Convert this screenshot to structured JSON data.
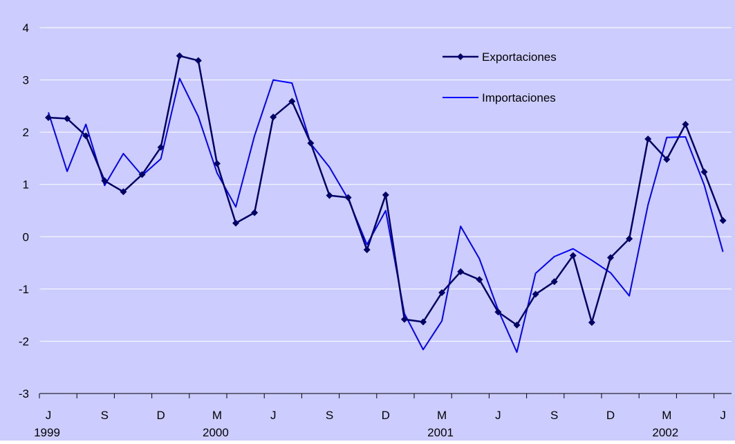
{
  "chart_data": {
    "type": "line",
    "title": "",
    "xlabel": "",
    "ylabel": "",
    "ylim": [
      -3,
      4
    ],
    "yticks": [
      -3,
      -2,
      -1,
      0,
      1,
      2,
      3,
      4
    ],
    "grid": true,
    "legend_position": "top-right",
    "x": [
      "1999-06",
      "1999-07",
      "1999-08",
      "1999-09",
      "1999-10",
      "1999-11",
      "1999-12",
      "2000-01",
      "2000-02",
      "2000-03",
      "2000-04",
      "2000-05",
      "2000-06",
      "2000-07",
      "2000-08",
      "2000-09",
      "2000-10",
      "2000-11",
      "2000-12",
      "2001-01",
      "2001-02",
      "2001-03",
      "2001-04",
      "2001-05",
      "2001-06",
      "2001-07",
      "2001-08",
      "2001-09",
      "2001-10",
      "2001-11",
      "2001-12",
      "2002-01",
      "2002-02",
      "2002-03",
      "2002-04",
      "2002-05",
      "2002-06"
    ],
    "month_tick_labels": [
      {
        "x": "1999-06",
        "label": "J"
      },
      {
        "x": "1999-09",
        "label": "S"
      },
      {
        "x": "1999-12",
        "label": "D"
      },
      {
        "x": "2000-03",
        "label": "M"
      },
      {
        "x": "2000-06",
        "label": "J"
      },
      {
        "x": "2000-09",
        "label": "S"
      },
      {
        "x": "2000-12",
        "label": "D"
      },
      {
        "x": "2001-03",
        "label": "M"
      },
      {
        "x": "2001-06",
        "label": "J"
      },
      {
        "x": "2001-09",
        "label": "S"
      },
      {
        "x": "2001-12",
        "label": "D"
      },
      {
        "x": "2002-03",
        "label": "M"
      },
      {
        "x": "2002-06",
        "label": "J"
      }
    ],
    "year_tick_labels": [
      {
        "x": "1999-06",
        "label": "1999"
      },
      {
        "x": "2000-03",
        "label": "2000"
      },
      {
        "x": "2001-03",
        "label": "2001"
      },
      {
        "x": "2002-03",
        "label": "2002"
      }
    ],
    "series": [
      {
        "name": "Exportaciones",
        "color": "#000066",
        "marker": "diamond",
        "values": [
          2.28,
          2.26,
          1.93,
          1.07,
          0.86,
          1.19,
          1.71,
          3.46,
          3.37,
          1.4,
          0.26,
          0.46,
          2.29,
          2.59,
          1.79,
          0.79,
          0.75,
          -0.25,
          0.8,
          -1.58,
          -1.63,
          -1.07,
          -0.67,
          -0.82,
          -1.44,
          -1.69,
          -1.1,
          -0.86,
          -0.36,
          -1.64,
          -0.4,
          -0.04,
          1.87,
          1.48,
          2.15,
          1.24,
          0.31
        ]
      },
      {
        "name": "Importaciones",
        "color": "#0000ff",
        "marker": "none",
        "values": [
          2.38,
          1.25,
          2.15,
          0.98,
          1.59,
          1.17,
          1.49,
          3.03,
          2.3,
          1.22,
          0.57,
          1.93,
          3.0,
          2.94,
          1.78,
          1.33,
          0.72,
          -0.15,
          0.5,
          -1.47,
          -2.16,
          -1.61,
          0.2,
          -0.42,
          -1.4,
          -2.21,
          -0.7,
          -0.38,
          -0.23,
          -0.45,
          -0.69,
          -1.13,
          0.61,
          1.9,
          1.91,
          0.99,
          -0.29
        ]
      }
    ]
  },
  "colors": {
    "plot_background": "#ccccff",
    "gridline": "#ffffff",
    "axis": "#000000"
  }
}
